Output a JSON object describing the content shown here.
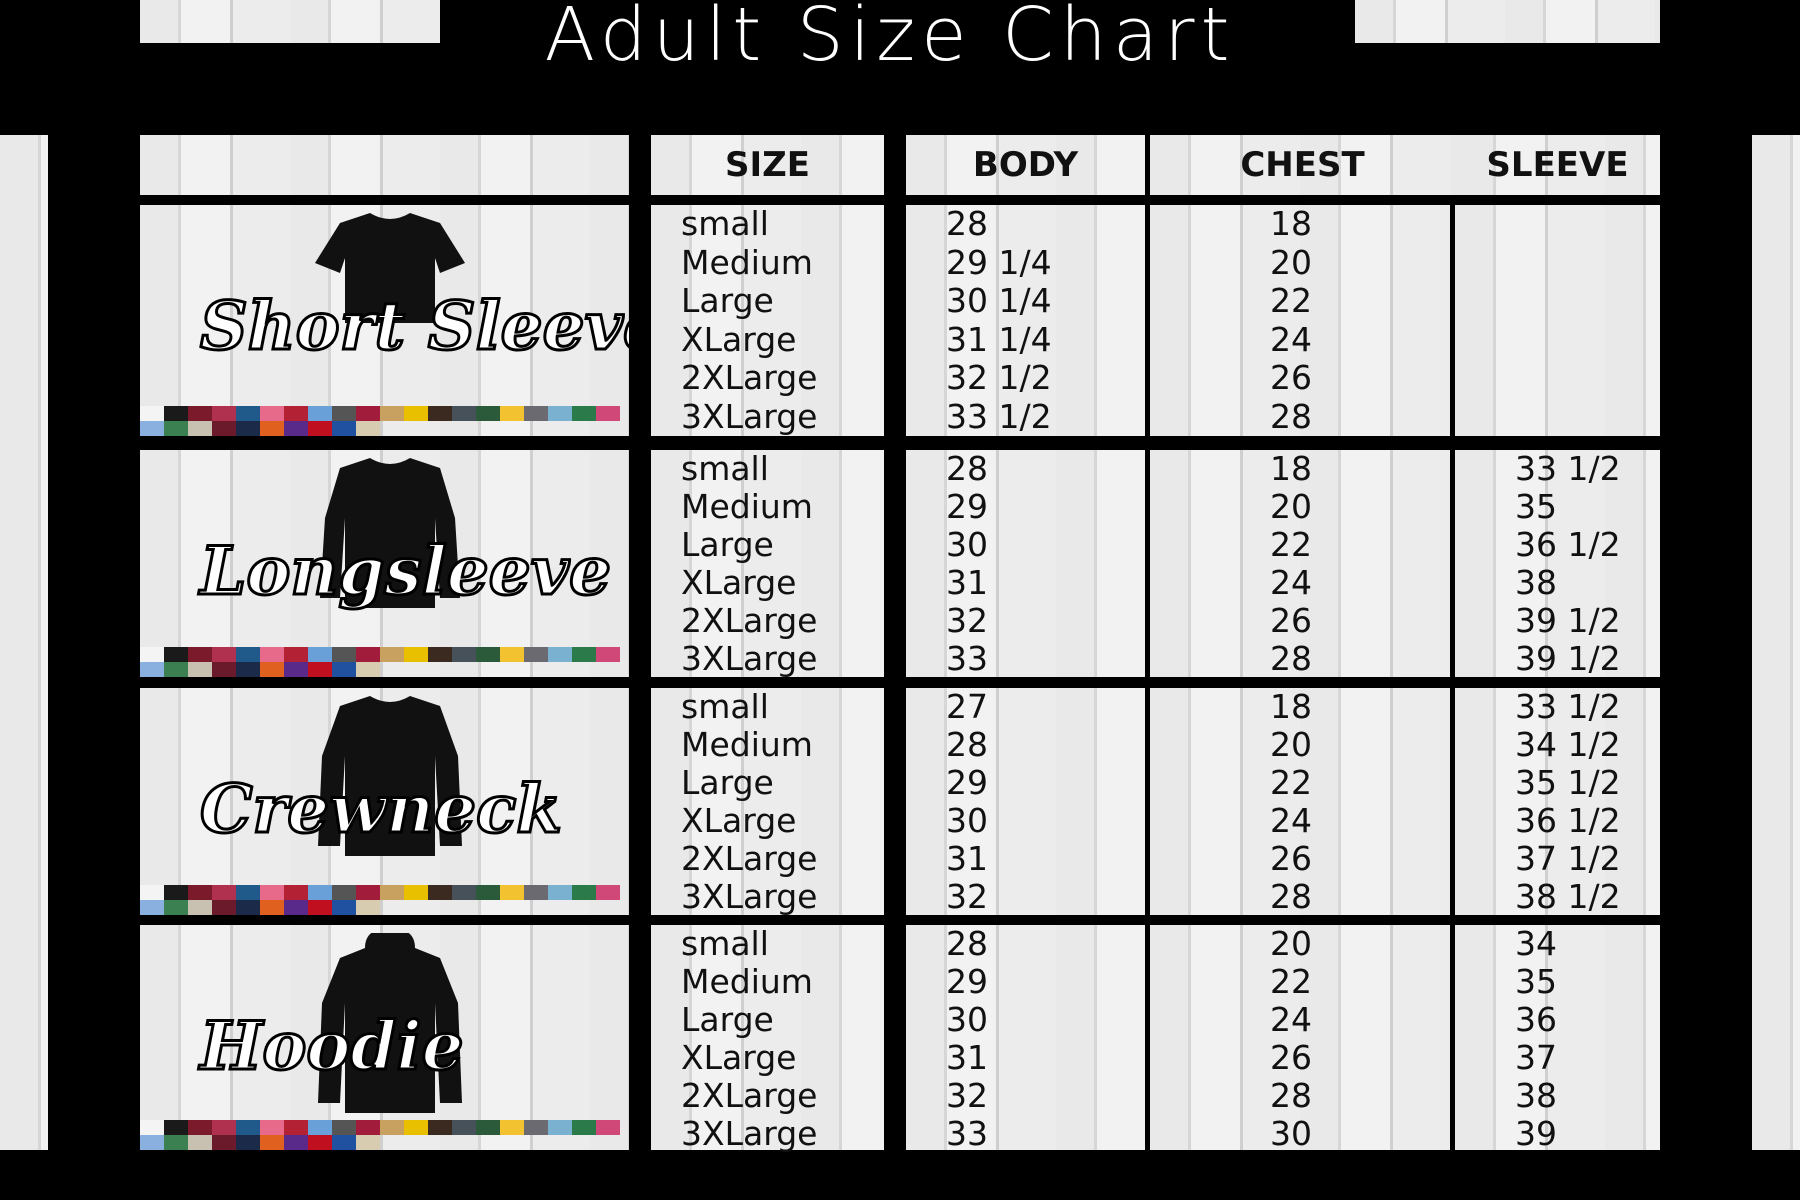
{
  "title": "Adult Size Chart",
  "headers": {
    "size": "SIZE",
    "body": "BODY",
    "chest": "CHEST",
    "sleeve": "SLEEVE"
  },
  "sizes": [
    "small",
    "Medium",
    "Large",
    "XLarge",
    "2XLarge",
    "3XLarge"
  ],
  "products": [
    {
      "name": "Short Sleeve",
      "garment": "t-shirt",
      "body": [
        "28",
        "29 1/4",
        "30 1/4",
        "31  1/4",
        "32 1/2",
        "33 1/2"
      ],
      "chest": [
        "18",
        "20",
        "22",
        "24",
        "26",
        "28"
      ],
      "sleeve": []
    },
    {
      "name": "Longsleeve",
      "garment": "long-sleeve-shirt",
      "body": [
        "28",
        "29",
        "30",
        "31",
        "32",
        "33"
      ],
      "chest": [
        "18",
        "20",
        "22",
        "24",
        "26",
        "28"
      ],
      "sleeve": [
        "33 1/2",
        "35",
        "36 1/2",
        "38",
        "39 1/2",
        "39 1/2"
      ]
    },
    {
      "name": "Crewneck",
      "garment": "sweatshirt",
      "body": [
        "27",
        "28",
        "29",
        "30",
        "31",
        "32"
      ],
      "chest": [
        "18",
        "20",
        "22",
        "24",
        "26",
        "28"
      ],
      "sleeve": [
        "33 1/2",
        "34 1/2",
        "35 1/2",
        "36 1/2",
        "37 1/2",
        "38 1/2"
      ]
    },
    {
      "name": "Hoodie",
      "garment": "hoodie",
      "body": [
        "28",
        "29",
        "30",
        "31",
        "32",
        "33"
      ],
      "chest": [
        "20",
        "22",
        "24",
        "26",
        "28",
        "30"
      ],
      "sleeve": [
        "34",
        "35",
        "36",
        "37",
        "38",
        "39"
      ]
    }
  ],
  "swatch_colors": [
    "#f4f4f4",
    "#1a1a1a",
    "#7a1a2a",
    "#b03050",
    "#1f5a8a",
    "#e86a8a",
    "#b22234",
    "#6aa0d8",
    "#555",
    "#a01c3a",
    "#c8a060",
    "#e8c000",
    "#3a2a20",
    "#46515a",
    "#2a5a3a",
    "#f2c230",
    "#6a6a70",
    "#7ab0d0",
    "#2a7a4a",
    "#d04878",
    "#8ab0e0",
    "#3a8050",
    "#c8c0b0",
    "#6a1a2a",
    "#1c2a4a",
    "#e06020",
    "#5a2a8a",
    "#c01020",
    "#2050a0",
    "#d8ccb0"
  ]
}
